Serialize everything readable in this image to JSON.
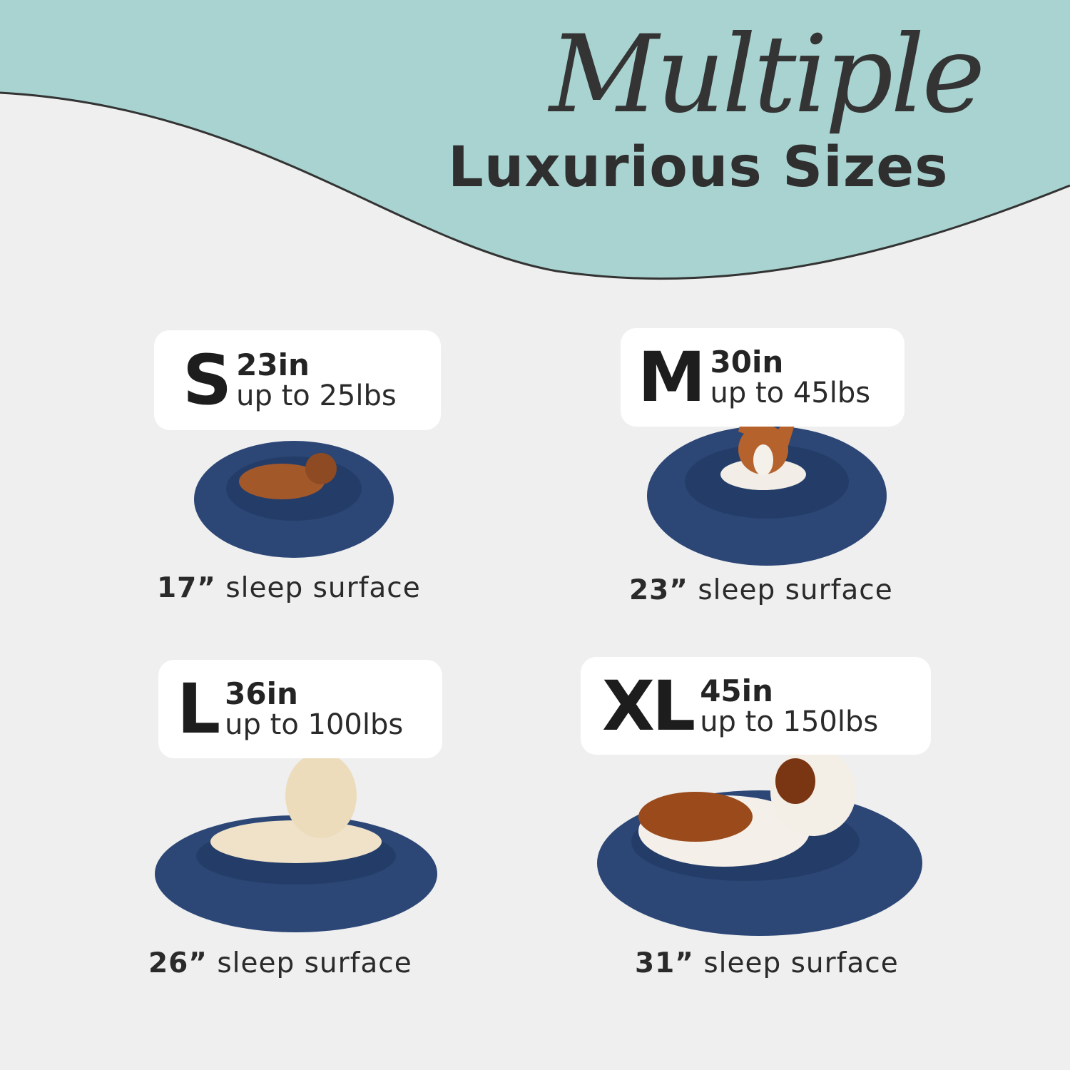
{
  "title": {
    "script": "Multiple",
    "main": "Luxurious Sizes"
  },
  "colors": {
    "teal_band": "#a8d3d0",
    "bed_navy": "#2c4676",
    "background": "#efefef",
    "text": "#2f2f2f"
  },
  "sizes": [
    {
      "label": "S",
      "inches": "23in",
      "weight": "up to 25lbs",
      "surface_value": "17”",
      "surface_text": "sleep surface",
      "dog": "dachshund"
    },
    {
      "label": "M",
      "inches": "30in",
      "weight": "up to 45lbs",
      "surface_value": "23”",
      "surface_text": "sleep surface",
      "dog": "corgi"
    },
    {
      "label": "L",
      "inches": "36in",
      "weight": "up to 100lbs",
      "surface_value": "26”",
      "surface_text": "sleep surface",
      "dog": "golden-retriever"
    },
    {
      "label": "XL",
      "inches": "45in",
      "weight": "up to 150lbs",
      "surface_value": "31”",
      "surface_text": "sleep surface",
      "dog": "saint-bernard"
    }
  ]
}
